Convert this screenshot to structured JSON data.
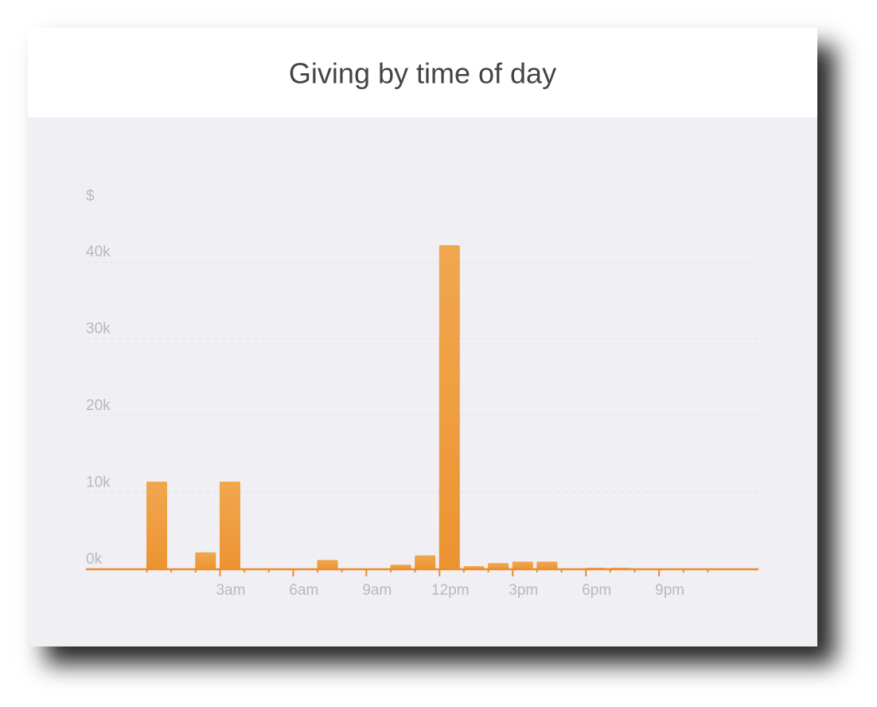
{
  "chart_data": {
    "type": "bar",
    "title": "Giving by time of day",
    "y_label": "$",
    "categories": [
      null,
      null,
      null,
      "3am",
      null,
      null,
      "6am",
      null,
      null,
      "9am",
      null,
      null,
      "12pm",
      null,
      null,
      "3pm",
      null,
      null,
      "6pm",
      null,
      null,
      "9pm",
      null,
      null
    ],
    "values": [
      11400,
      0,
      2200,
      11400,
      0,
      0,
      0,
      1200,
      0,
      0,
      600,
      1800,
      42200,
      400,
      800,
      1000,
      1000,
      0,
      200,
      200,
      0,
      0,
      0,
      0
    ],
    "color": "#ef9a36",
    "ylim": [
      0,
      45000
    ],
    "yticks": [
      {
        "value": 0,
        "label": "0k"
      },
      {
        "value": 10000,
        "label": "10k"
      },
      {
        "value": 20000,
        "label": "20k"
      },
      {
        "value": 30000,
        "label": "30k"
      },
      {
        "value": 40000,
        "label": "40k"
      }
    ],
    "grid": true
  }
}
